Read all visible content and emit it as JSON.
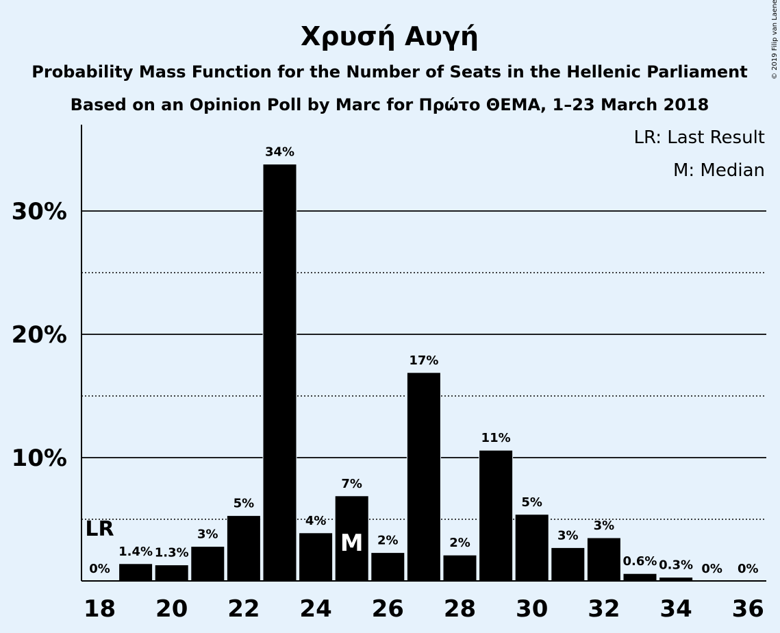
{
  "chart_data": {
    "type": "bar",
    "title": "Χρυσή Αυγή",
    "subtitle_lines": [
      "Probability Mass Function for the Number of Seats in the Hellenic Parliament",
      "Based on an Opinion Poll by Marc for Πρώτο ΘΕΜΑ, 1–23 March 2018"
    ],
    "legend": [
      "LR: Last Result",
      "M: Median"
    ],
    "legend_position": "top-right",
    "copyright": "© 2019 Filip van Laenen",
    "x": [
      18,
      19,
      20,
      21,
      22,
      23,
      24,
      25,
      26,
      27,
      28,
      29,
      30,
      31,
      32,
      33,
      34,
      35,
      36
    ],
    "values": [
      0,
      1.4,
      1.3,
      2.8,
      5.3,
      33.8,
      3.9,
      6.9,
      2.3,
      16.9,
      2.1,
      10.6,
      5.4,
      2.7,
      3.5,
      0.6,
      0.3,
      0,
      0
    ],
    "labels": [
      "0%",
      "1.4%",
      "1.3%",
      "3%",
      "5%",
      "34%",
      "4%",
      "7%",
      "2%",
      "17%",
      "2%",
      "11%",
      "5%",
      "3%",
      "3%",
      "0.6%",
      "0.3%",
      "0%",
      "0%"
    ],
    "xticks": [
      "18",
      "20",
      "22",
      "24",
      "26",
      "28",
      "30",
      "32",
      "34",
      "36"
    ],
    "xtick_values": [
      18,
      20,
      22,
      24,
      26,
      28,
      30,
      32,
      34,
      36
    ],
    "yticks": [
      "10%",
      "20%",
      "30%"
    ],
    "ytick_values": [
      10,
      20,
      30
    ],
    "minor_grid_values": [
      5,
      15,
      25
    ],
    "ylim": [
      0,
      37
    ],
    "last_result": {
      "seat": 18,
      "label": "LR"
    },
    "median": {
      "seat": 25,
      "label": "M"
    },
    "colors": {
      "bar": "#000000",
      "background": "#e6f2fc"
    }
  }
}
